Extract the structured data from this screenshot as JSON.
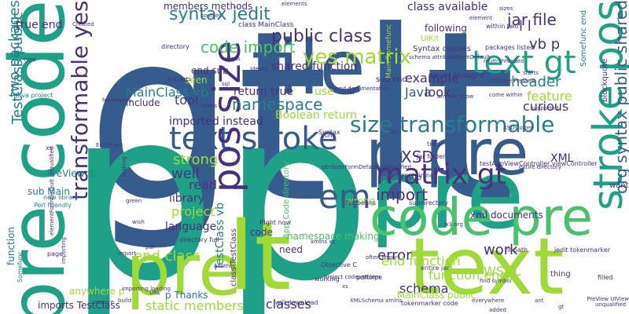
{
  "palette": {
    "purple": "#440154",
    "indigo": "#46327e",
    "blue": "#365c8d",
    "teal": "#277f8e",
    "green": "#1fa187",
    "lime": "#4ac16d",
    "yellow": "#a0da39"
  },
  "words": [
    {
      "text": "gt",
      "color": "#365c8d"
    },
    {
      "text": "lt",
      "color": "#365c8d"
    },
    {
      "text": "p",
      "color": "#1fa187"
    },
    {
      "text": "p",
      "color": "#1fa187"
    },
    {
      "text": "pre",
      "color": "#1fa187"
    },
    {
      "text": "file",
      "color": "#365c8d"
    },
    {
      "text": "code pre",
      "color": "#4ac16d"
    },
    {
      "text": "text",
      "color": "#a0da39"
    },
    {
      "text": "lt",
      "color": "#a0da39"
    },
    {
      "text": "pre",
      "color": "#a0da39"
    },
    {
      "text": "pre code",
      "color": "#1fa187"
    },
    {
      "text": "p pre",
      "color": "#365c8d"
    },
    {
      "text": "text stroke",
      "color": "#365c8d"
    },
    {
      "text": "stroke pos",
      "color": "#1fa187"
    },
    {
      "text": "pos size",
      "color": "#46327e"
    },
    {
      "text": "size transformable",
      "color": "#277f8e"
    },
    {
      "text": "transformable yes",
      "color": "#46327e"
    },
    {
      "text": "text gt",
      "color": "#1fa187"
    },
    {
      "text": "yes matrix",
      "color": "#a0da39"
    },
    {
      "text": "em",
      "color": "#365c8d"
    },
    {
      "text": "matrix gt",
      "color": "#46327e"
    },
    {
      "text": "org syntax public shared",
      "color": "#365c8d"
    },
    {
      "text": "syntax jedit",
      "color": "#277f8e"
    },
    {
      "text": "code import",
      "color": "#4ac16d"
    },
    {
      "text": "public class",
      "color": "#46327e"
    },
    {
      "text": "TestClass public",
      "color": "#277f8e"
    },
    {
      "text": "two packages",
      "color": "#277f8e"
    },
    {
      "text": "true end",
      "color": "#46327e"
    },
    {
      "text": "jar file",
      "color": "#46327e"
    },
    {
      "text": "l l",
      "color": "#46327e"
    },
    {
      "text": "XSD",
      "color": "#46327e"
    },
    {
      "text": "vb p",
      "color": "#46327e"
    },
    {
      "text": "header",
      "color": "#277f8e"
    },
    {
      "text": "example",
      "color": "#46327e"
    },
    {
      "text": "Java",
      "color": "#365c8d"
    },
    {
      "text": "look",
      "color": "#46327e"
    },
    {
      "text": "feature",
      "color": "#a0da39"
    },
    {
      "text": "curious",
      "color": "#46327e"
    },
    {
      "text": "strong",
      "color": "#a0da39"
    },
    {
      "text": "well",
      "color": "#46327e"
    },
    {
      "text": "read",
      "color": "#46327e"
    },
    {
      "text": "library",
      "color": "#46327e"
    },
    {
      "text": "project",
      "color": "#a0da39"
    },
    {
      "text": "language",
      "color": "#46327e"
    },
    {
      "text": "import",
      "color": "#46327e"
    },
    {
      "text": "XML",
      "color": "#46327e"
    },
    {
      "text": "end class",
      "color": "#a0da39"
    },
    {
      "text": "static members",
      "color": "#a0da39"
    },
    {
      "text": "classes",
      "color": "#46327e"
    },
    {
      "text": "function end",
      "color": "#a0da39"
    },
    {
      "text": "schema",
      "color": "#46327e"
    },
    {
      "text": "error",
      "color": "#46327e"
    },
    {
      "text": "end function",
      "color": "#a0da39"
    },
    {
      "text": "WSDL",
      "color": "#a0da39"
    },
    {
      "text": "work",
      "color": "#46327e"
    },
    {
      "text": "namespace",
      "color": "#277f8e"
    },
    {
      "text": "Boolean return",
      "color": "#a0da39"
    },
    {
      "text": "imported instead",
      "color": "#46327e"
    },
    {
      "text": "return true",
      "color": "#46327e"
    },
    {
      "text": "use",
      "color": "#a0da39"
    },
    {
      "text": "MainClass vb",
      "color": "#277f8e"
    },
    {
      "text": "tool",
      "color": "#46327e"
    },
    {
      "text": "shared function",
      "color": "#46327e"
    },
    {
      "text": "members methods",
      "color": "#46327e"
    },
    {
      "text": "class available",
      "color": "#46327e"
    },
    {
      "text": "following",
      "color": "#46327e"
    },
    {
      "text": "include",
      "color": "#46327e"
    },
    {
      "text": "seen",
      "color": "#a0da39"
    },
    {
      "text": "end sub",
      "color": "#46327e"
    },
    {
      "text": "PreView h",
      "color": "#277f8e"
    },
    {
      "text": "sub Main",
      "color": "#277f8e"
    },
    {
      "text": "TestClass vb",
      "color": "#277f8e"
    },
    {
      "text": "wrong",
      "color": "#a0da39"
    },
    {
      "text": "xml documents",
      "color": "#46327e"
    },
    {
      "text": "function",
      "color": "#277f8e"
    },
    {
      "text": "imports TestClass",
      "color": "#46327e"
    },
    {
      "text": "anywhere p",
      "color": "#a0da39"
    },
    {
      "text": "p Thanks",
      "color": "#277f8e"
    },
    {
      "text": "code",
      "color": "#46327e"
    },
    {
      "text": "need",
      "color": "#46327e"
    },
    {
      "text": "namespace making",
      "color": "#4ac16d"
    },
    {
      "text": "MainClass public",
      "color": "#a0da39"
    },
    {
      "text": "App_Code directory",
      "color": "#4ac16d"
    },
    {
      "text": "sub end",
      "color": "#46327e"
    },
    {
      "text": "public sub",
      "color": "#46327e"
    },
    {
      "text": "class TestClass",
      "color": "#46327e"
    },
    {
      "text": "blockquote",
      "color": "#46327e"
    },
    {
      "text": "want",
      "color": "#46327e"
    },
    {
      "text": "thing",
      "color": "#46327e"
    },
    {
      "text": "Somefunc end",
      "color": "#277f8e"
    },
    {
      "text": "UIKit",
      "color": "#a0da39"
    },
    {
      "text": "never thought",
      "color": "#46327e"
    },
    {
      "text": "Syntax classes",
      "color": "#46327e"
    },
    {
      "text": "directory",
      "color": "#46327e"
    },
    {
      "text": "xs",
      "color": "#46327e"
    },
    {
      "text": "Java project",
      "color": "#277f8e"
    },
    {
      "text": "new library",
      "color": "#277f8e"
    },
    {
      "text": "Perl friendly",
      "color": "#277f8e"
    },
    {
      "text": "page",
      "color": "#46327e"
    },
    {
      "text": "Somefunc",
      "color": "#277f8e"
    },
    {
      "text": "packages listed",
      "color": "#46327e"
    },
    {
      "text": "within two",
      "color": "#46327e"
    },
    {
      "text": "entire jar",
      "color": "#46327e"
    },
    {
      "text": "testAppViewController viewController",
      "color": "#46327e"
    },
    {
      "text": "Jar folder",
      "color": "#46327e"
    },
    {
      "text": "subdirectory",
      "color": "#46327e"
    },
    {
      "text": "jedit tokenmarker",
      "color": "#46327e"
    },
    {
      "text": "Netbeans",
      "color": "#46327e"
    },
    {
      "text": "Right now",
      "color": "#46327e"
    },
    {
      "text": "directory full",
      "color": "#46327e"
    },
    {
      "text": "containing",
      "color": "#46327e"
    },
    {
      "text": "lt path",
      "color": "#46327e"
    },
    {
      "text": "Objective C",
      "color": "#46327e"
    },
    {
      "text": "working",
      "color": "#46327e"
    },
    {
      "text": "will download",
      "color": "#46327e"
    },
    {
      "text": "tells",
      "color": "#46327e"
    },
    {
      "text": "pdftoipe",
      "color": "#46327e"
    },
    {
      "text": "filled",
      "color": "#46327e"
    },
    {
      "text": "elementFormDefault unqualified",
      "color": "#46327e"
    },
    {
      "text": "tokenmarker code",
      "color": "#46327e"
    },
    {
      "text": "Main Somefunc",
      "color": "#a0da39"
    },
    {
      "text": "class MainClass",
      "color": "#46327e"
    },
    {
      "text": "elements",
      "color": "#46327e"
    },
    {
      "text": "Created",
      "color": "#46327e"
    },
    {
      "text": "come within",
      "color": "#46327e"
    },
    {
      "text": "sql",
      "color": "#46327e"
    },
    {
      "text": "Ideally",
      "color": "#46327e"
    },
    {
      "text": "brackets",
      "color": "#46327e"
    },
    {
      "text": "pdf",
      "color": "#46327e"
    },
    {
      "text": "wish",
      "color": "#46327e"
    },
    {
      "text": "URL",
      "color": "#46327e"
    },
    {
      "text": "added",
      "color": "#46327e"
    },
    {
      "text": "xs",
      "color": "#46327e"
    },
    {
      "text": "gt",
      "color": "#46327e"
    },
    {
      "text": "Entire ant",
      "color": "#46327e"
    },
    {
      "text": "order",
      "color": "#46327e"
    },
    {
      "text": "ton",
      "color": "#46327e"
    },
    {
      "text": "using",
      "color": "#46327e"
    },
    {
      "text": "another",
      "color": "#46327e"
    },
    {
      "text": "exist",
      "color": "#46327e"
    },
    {
      "text": "looking",
      "color": "#46327e"
    },
    {
      "text": "green",
      "color": "#46327e"
    },
    {
      "text": "build",
      "color": "#46327e"
    },
    {
      "text": "starts",
      "color": "#46327e"
    },
    {
      "text": "element",
      "color": "#46327e"
    },
    {
      "text": "problem",
      "color": "#46327e"
    },
    {
      "text": "multi threaded",
      "color": "#46327e"
    },
    {
      "text": "interface PreView",
      "color": "#46327e"
    },
    {
      "text": "anyone show",
      "color": "#46327e"
    },
    {
      "text": "ant",
      "color": "#46327e"
    },
    {
      "text": "sizes",
      "color": "#46327e"
    },
    {
      "text": "supported",
      "color": "#46327e"
    },
    {
      "text": "w3 org",
      "color": "#46327e"
    },
    {
      "text": "XSDs often",
      "color": "#46327e"
    },
    {
      "text": "entire directory",
      "color": "#46327e"
    },
    {
      "text": "schema attributeFormDefault",
      "color": "#46327e"
    },
    {
      "text": "often import",
      "color": "#46327e"
    },
    {
      "text": "importing",
      "color": "#46327e"
    },
    {
      "text": "import",
      "color": "#46327e"
    },
    {
      "text": "sources",
      "color": "#46327e"
    },
    {
      "text": "find symbol",
      "color": "#46327e"
    },
    {
      "text": "PreView UIView",
      "color": "#46327e"
    },
    {
      "text": "project code",
      "color": "#46327e"
    },
    {
      "text": "unqualified",
      "color": "#46327e"
    },
    {
      "text": "attributeFormDefault unqualified",
      "color": "#46327e"
    },
    {
      "text": "xmlns xs",
      "color": "#46327e"
    },
    {
      "text": "everywhere",
      "color": "#46327e"
    },
    {
      "text": "framework",
      "color": "#46327e"
    },
    {
      "text": "type",
      "color": "#46327e"
    },
    {
      "text": "require",
      "color": "#46327e"
    },
    {
      "text": "importing loading",
      "color": "#46327e"
    },
    {
      "text": "ideas",
      "color": "#46327e"
    },
    {
      "text": "XMLSchema xmlns",
      "color": "#46327e"
    },
    {
      "text": "found documentation",
      "color": "#46327e"
    },
    {
      "text": "xmlns",
      "color": "#46327e"
    },
    {
      "text": "Syntax",
      "color": "#46327e"
    }
  ]
}
